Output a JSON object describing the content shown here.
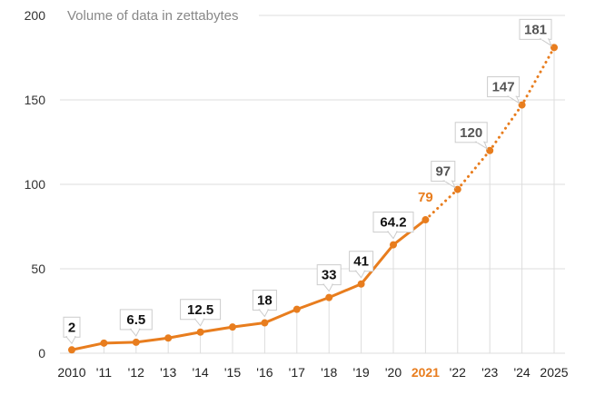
{
  "chart_data": {
    "type": "line",
    "title": "",
    "annotation": "Volume of data in zettabytes",
    "xlabel": "",
    "ylabel": "",
    "ylim": [
      0,
      200
    ],
    "yticks": [
      0,
      50,
      100,
      150,
      200
    ],
    "grid": true,
    "x": [
      "2010",
      "'11",
      "'12",
      "'13",
      "'14",
      "'15",
      "'16",
      "'17",
      "'18",
      "'19",
      "'20",
      "2021",
      "'22",
      "'23",
      "'24",
      "2025"
    ],
    "highlight_x": "2021",
    "series": [
      {
        "values": [
          2,
          6,
          6.5,
          9,
          12.5,
          15.5,
          18,
          26,
          33,
          41,
          64.2,
          79,
          97,
          120,
          147,
          181
        ],
        "point_labels": [
          "2",
          "",
          "6.5",
          "",
          "12.5",
          "",
          "18",
          "",
          "33",
          "41",
          "64.2",
          "79",
          "97",
          "120",
          "147",
          "181"
        ],
        "actual_through_index": 11,
        "forecast_style": "dotted",
        "color": "#e87d1e"
      }
    ],
    "colors": {
      "line": "#e87d1e",
      "grid": "#dddddd",
      "drop_line": "#dddddd",
      "label_actual": "#111111",
      "label_highlight": "#e87d1e",
      "label_forecast": "#555555"
    }
  }
}
